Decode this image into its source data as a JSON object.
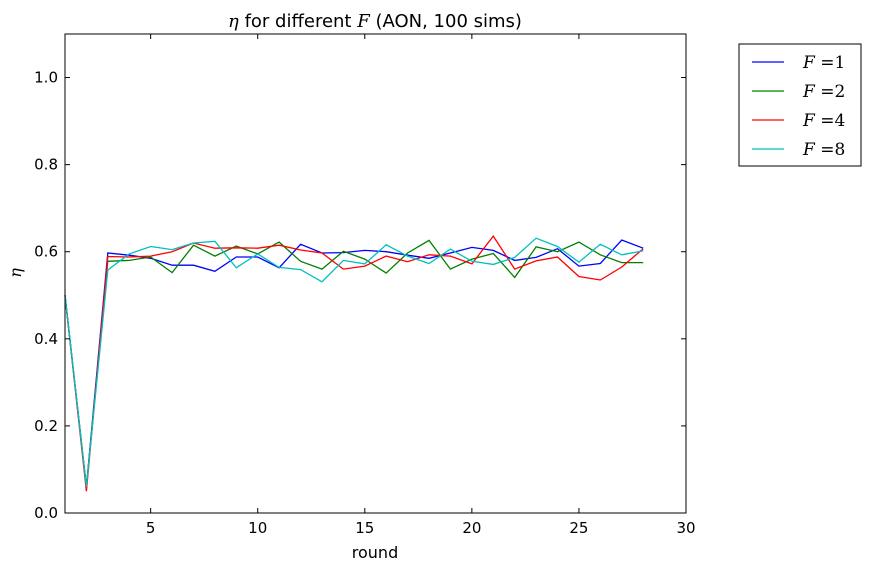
{
  "chart_data": {
    "type": "line",
    "title": {
      "var": "η",
      "middle": " for different ",
      "var2": "F",
      "suffix": " (AON, 100 sims)"
    },
    "xlabel": "round",
    "ylabel": "η",
    "xlim": [
      1,
      30
    ],
    "ylim": [
      0.0,
      1.1
    ],
    "xticks": [
      5,
      10,
      15,
      20,
      25,
      30
    ],
    "xtick_labels": [
      "5",
      "10",
      "15",
      "20",
      "25",
      "30"
    ],
    "yticks": [
      0.0,
      0.2,
      0.4,
      0.6,
      0.8,
      1.0
    ],
    "ytick_labels": [
      "0.0",
      "0.2",
      "0.4",
      "0.6",
      "0.8",
      "1.0"
    ],
    "grid": false,
    "legend_position": "outside-top-right",
    "x": [
      1,
      2,
      3,
      4,
      5,
      6,
      7,
      8,
      9,
      10,
      11,
      12,
      13,
      14,
      15,
      16,
      17,
      18,
      19,
      20,
      21,
      22,
      23,
      24,
      25,
      26,
      27,
      28
    ],
    "series": [
      {
        "name": "F =1",
        "legend_var": "F",
        "legend_value": "=1",
        "color": "#0000ff",
        "values": [
          0.5,
          0.06,
          0.597,
          0.592,
          0.585,
          0.569,
          0.569,
          0.555,
          0.588,
          0.588,
          0.563,
          0.617,
          0.597,
          0.598,
          0.603,
          0.6,
          0.592,
          0.585,
          0.597,
          0.61,
          0.603,
          0.58,
          0.587,
          0.607,
          0.567,
          0.573,
          0.627,
          0.608
        ]
      },
      {
        "name": "F =2",
        "legend_var": "F",
        "legend_value": "=2",
        "color": "#008000",
        "values": [
          0.5,
          0.06,
          0.578,
          0.58,
          0.588,
          0.552,
          0.615,
          0.59,
          0.613,
          0.595,
          0.622,
          0.578,
          0.56,
          0.601,
          0.583,
          0.551,
          0.597,
          0.626,
          0.56,
          0.583,
          0.596,
          0.541,
          0.611,
          0.6,
          0.622,
          0.593,
          0.575,
          0.575
        ]
      },
      {
        "name": "F =4",
        "legend_var": "F",
        "legend_value": "=4",
        "color": "#ff0000",
        "values": [
          0.5,
          0.05,
          0.589,
          0.588,
          0.59,
          0.6,
          0.62,
          0.608,
          0.609,
          0.608,
          0.615,
          0.604,
          0.597,
          0.56,
          0.567,
          0.59,
          0.577,
          0.593,
          0.59,
          0.572,
          0.636,
          0.56,
          0.579,
          0.588,
          0.543,
          0.535,
          0.565,
          0.607
        ]
      },
      {
        "name": "F =8",
        "legend_var": "F",
        "legend_value": "=8",
        "color": "#00bfbf",
        "values": [
          0.5,
          0.06,
          0.558,
          0.595,
          0.612,
          0.605,
          0.62,
          0.624,
          0.563,
          0.595,
          0.564,
          0.559,
          0.531,
          0.58,
          0.572,
          0.616,
          0.59,
          0.573,
          0.606,
          0.578,
          0.571,
          0.587,
          0.631,
          0.612,
          0.576,
          0.617,
          0.593,
          0.602
        ]
      }
    ]
  }
}
